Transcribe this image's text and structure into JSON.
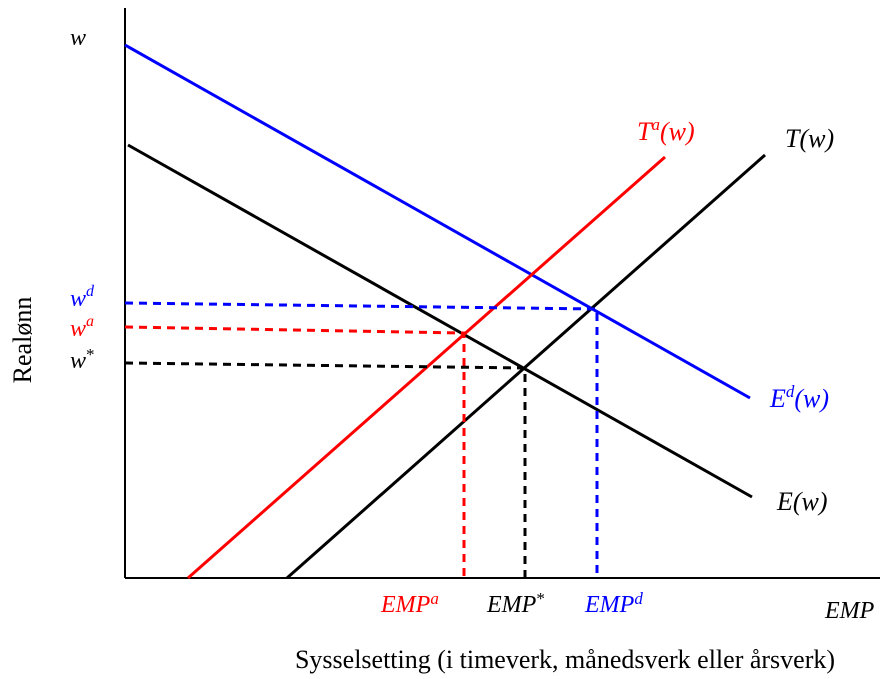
{
  "y_axis_symbol": "w",
  "x_axis_symbol": "EMP",
  "y_axis_title": "Realønn",
  "x_axis_title": "Sysselsetting (i timeverk, månedsverk eller årsverk)",
  "curves": {
    "Ed": {
      "base": "E",
      "sup": "d",
      "arg": "(w)",
      "color": "#0000ff"
    },
    "E": {
      "base": "E",
      "sup": "",
      "arg": "(w)",
      "color": "#000000"
    },
    "Ta": {
      "base": "T",
      "sup": "a",
      "arg": "(w)",
      "color": "#ff0000"
    },
    "T": {
      "base": "T",
      "sup": "",
      "arg": "(w)",
      "color": "#000000"
    }
  },
  "wage_labels": {
    "wd": {
      "base": "w",
      "sup": "d",
      "color": "#0000ff"
    },
    "wa": {
      "base": "w",
      "sup": "a",
      "color": "#ff0000"
    },
    "wstar": {
      "base": "w",
      "sup": "*",
      "color": "#000000"
    }
  },
  "employment_labels": {
    "empa": {
      "base": "EMP",
      "sup": "a",
      "color": "#ff0000"
    },
    "empstar": {
      "base": "EMP",
      "sup": "*",
      "color": "#000000"
    },
    "empd": {
      "base": "EMP",
      "sup": "d",
      "color": "#0000ff"
    }
  }
}
